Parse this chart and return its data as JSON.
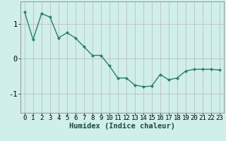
{
  "x": [
    0,
    1,
    2,
    3,
    4,
    5,
    6,
    7,
    8,
    9,
    10,
    11,
    12,
    13,
    14,
    15,
    16,
    17,
    18,
    19,
    20,
    21,
    22,
    23
  ],
  "y": [
    1.35,
    0.55,
    1.3,
    1.2,
    0.6,
    0.75,
    0.6,
    0.35,
    0.1,
    0.1,
    -0.2,
    -0.55,
    -0.55,
    -0.75,
    -0.8,
    -0.78,
    -0.45,
    -0.6,
    -0.55,
    -0.35,
    -0.3,
    -0.3,
    -0.3,
    -0.32
  ],
  "line_color": "#2a7d6e",
  "marker": "D",
  "marker_size": 2.2,
  "line_width": 1.0,
  "bg_color": "#d0eeea",
  "grid_color": "#b8b8b8",
  "xlabel": "Humidex (Indice chaleur)",
  "ylim": [
    -1.55,
    1.65
  ],
  "yticks": [
    -1,
    0,
    1
  ],
  "xticks": [
    0,
    1,
    2,
    3,
    4,
    5,
    6,
    7,
    8,
    9,
    10,
    11,
    12,
    13,
    14,
    15,
    16,
    17,
    18,
    19,
    20,
    21,
    22,
    23
  ],
  "xlabel_fontsize": 7.5,
  "tick_fontsize": 6.5,
  "ylabel_fontsize": 7
}
